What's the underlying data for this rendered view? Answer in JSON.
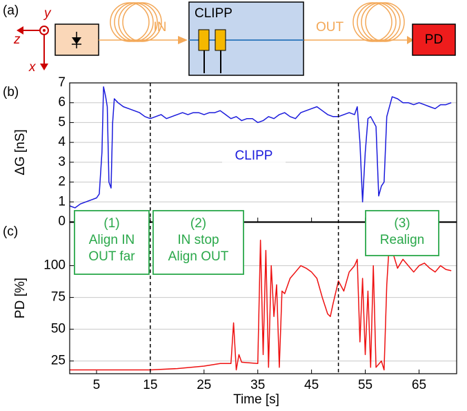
{
  "diagram": {
    "panel_label": "(a)",
    "axis_labels": [
      "y",
      "z",
      "x"
    ],
    "input_label": "IN",
    "chip_label": "CLIPP",
    "output_label": "OUT",
    "detector_label": "PD"
  },
  "callouts": [
    [
      "(1)",
      "Align IN",
      "OUT far"
    ],
    [
      "(2)",
      "IN stop",
      "Align OUT"
    ],
    [
      "(3)",
      "Realign"
    ]
  ],
  "chart_data": [
    {
      "type": "line",
      "panel_label": "(b)",
      "y_label": "ΔG [nS]",
      "label": "CLIPP",
      "color": "#1a1adc",
      "xlim": [
        0,
        72
      ],
      "xticks": [
        5,
        15,
        25,
        35,
        45,
        55,
        65
      ],
      "ylim": [
        0,
        7
      ],
      "yticks": [
        0,
        1,
        2,
        3,
        4,
        5,
        6,
        7
      ],
      "grid": true,
      "vlines": [
        15,
        50
      ],
      "x": [
        0,
        1,
        2,
        3,
        4,
        5,
        5.5,
        6,
        6.3,
        6.7,
        7,
        7.3,
        7.7,
        8,
        8.3,
        9,
        10,
        11,
        12,
        13,
        14,
        15,
        16,
        17,
        18,
        19,
        20,
        21,
        22,
        23,
        24,
        25,
        26,
        27,
        28,
        29,
        30,
        31,
        32,
        33,
        34,
        35,
        36,
        37,
        38,
        39,
        40,
        41,
        42,
        43,
        44,
        45,
        46,
        47,
        48,
        49,
        50,
        51,
        52,
        53,
        53.5,
        54,
        54.5,
        55,
        55.5,
        56,
        57,
        57.5,
        58,
        58.5,
        59,
        60,
        61,
        62,
        63,
        64,
        65,
        66,
        67,
        68,
        69,
        70,
        71
      ],
      "values": [
        0.8,
        0.7,
        0.9,
        1.0,
        1.1,
        1.2,
        1.4,
        3.5,
        6.8,
        6.3,
        5.8,
        2.0,
        1.7,
        5.0,
        6.2,
        6.0,
        5.8,
        5.7,
        5.6,
        5.5,
        5.3,
        5.2,
        5.3,
        5.4,
        5.2,
        5.3,
        5.4,
        5.5,
        5.4,
        5.5,
        5.5,
        5.4,
        5.5,
        5.5,
        5.6,
        5.4,
        5.2,
        5.3,
        5.1,
        5.2,
        5.2,
        5.0,
        5.1,
        5.3,
        5.2,
        5.4,
        5.5,
        5.3,
        5.2,
        5.5,
        5.6,
        5.7,
        5.8,
        5.6,
        5.4,
        5.3,
        5.3,
        5.4,
        5.5,
        5.4,
        5.8,
        4.0,
        1.0,
        3.5,
        5.2,
        5.3,
        4.8,
        1.3,
        1.8,
        2.0,
        5.3,
        6.3,
        6.2,
        6.0,
        6.0,
        5.9,
        6.0,
        5.9,
        5.8,
        5.7,
        5.9,
        5.9,
        6.0
      ]
    },
    {
      "type": "line",
      "panel_label": "(c)",
      "y_label": "PD [%]",
      "x_label": "Time [s]",
      "color": "#ee1111",
      "xlim": [
        0,
        72
      ],
      "xticks": [
        5,
        15,
        25,
        35,
        45,
        55,
        65
      ],
      "ylim": [
        15,
        134
      ],
      "yticks": [
        25,
        50,
        75,
        100
      ],
      "grid": true,
      "x": [
        0,
        5,
        10,
        15,
        20,
        25,
        28,
        30,
        30.5,
        31,
        31.5,
        32,
        35,
        35.5,
        36,
        36.5,
        37,
        37.5,
        38,
        38.5,
        39,
        39.5,
        40,
        41,
        42,
        43,
        44,
        45,
        46,
        47,
        48,
        48.5,
        49,
        50,
        51,
        52,
        53,
        53.5,
        54,
        54.5,
        55,
        55.5,
        56,
        56.5,
        57,
        58,
        58.5,
        59,
        59.5,
        60,
        61,
        62,
        63,
        64,
        65,
        66,
        67,
        68,
        69,
        70,
        71
      ],
      "values": [
        18,
        18,
        18,
        18,
        19,
        21,
        23,
        23,
        55,
        18,
        30,
        24,
        23,
        120,
        30,
        112,
        20,
        100,
        60,
        85,
        20,
        80,
        78,
        90,
        95,
        100,
        98,
        95,
        90,
        75,
        62,
        60,
        70,
        88,
        80,
        95,
        100,
        105,
        40,
        90,
        30,
        80,
        20,
        100,
        20,
        25,
        18,
        85,
        120,
        112,
        98,
        105,
        100,
        95,
        100,
        102,
        98,
        95,
        100,
        97,
        96
      ]
    }
  ]
}
